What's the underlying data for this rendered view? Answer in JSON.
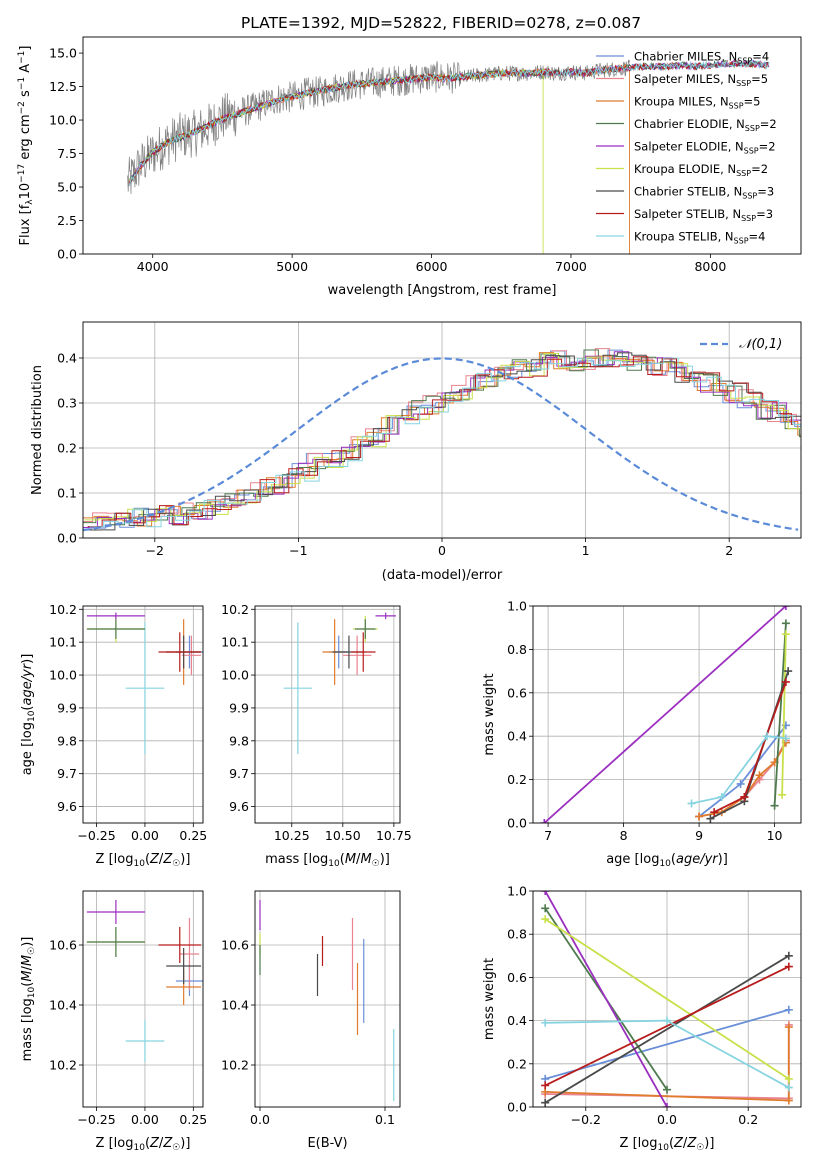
{
  "figure": {
    "title": "PLATE=1392, MJD=52822, FIBERID=0278, z=0.087"
  },
  "series_meta": [
    {
      "name": "Chabrier MILES",
      "nssp": "4",
      "color": "#6a8fd8"
    },
    {
      "name": "Salpeter MILES",
      "nssp": "5",
      "color": "#e8838f"
    },
    {
      "name": "Kroupa MILES",
      "nssp": "5",
      "color": "#e07c2e"
    },
    {
      "name": "Chabrier ELODIE",
      "nssp": "2",
      "color": "#4e7a4e"
    },
    {
      "name": "Salpeter ELODIE",
      "nssp": "2",
      "color": "#9b2fbf"
    },
    {
      "name": "Kroupa ELODIE",
      "nssp": "2",
      "color": "#c9e04a"
    },
    {
      "name": "Chabrier STELIB",
      "nssp": "3",
      "color": "#4a4a4a"
    },
    {
      "name": "Salpeter STELIB",
      "nssp": "3",
      "color": "#b81c1c"
    },
    {
      "name": "Kroupa STELIB",
      "nssp": "4",
      "color": "#86d4e0"
    }
  ],
  "chart_data": [
    {
      "id": "spectrum",
      "type": "line",
      "title": "PLATE=1392, MJD=52822, FIBERID=0278, z=0.087",
      "xlabel": "wavelength [Angstrom, rest frame]",
      "ylabel": "Flux [f_λ 10^-17 erg cm^-2 s^-1 A^-1]",
      "xlim": [
        3500,
        8650
      ],
      "ylim": [
        0,
        16.2
      ],
      "xticks": [
        4000,
        5000,
        6000,
        7000,
        8000
      ],
      "yticks": [
        0.0,
        2.5,
        5.0,
        7.5,
        10.0,
        12.5,
        15.0
      ],
      "data_curve": {
        "name": "data",
        "color": "#808080",
        "x": [
          3800,
          3900,
          4000,
          4100,
          4200,
          4300,
          4400,
          4500,
          4600,
          4700,
          4800,
          4900,
          5000,
          5100,
          5200,
          5300,
          5400,
          5500,
          5600,
          5700,
          5800,
          5900,
          6000,
          6100,
          6200,
          6300,
          6400,
          6500,
          6600,
          6700,
          6800,
          6900,
          7000,
          7100,
          7200,
          7300,
          7400
        ],
        "y": [
          5.0,
          6.5,
          7.5,
          8.3,
          8.8,
          9.0,
          9.5,
          10.2,
          10.5,
          10.8,
          11.2,
          11.6,
          11.7,
          12.0,
          12.1,
          12.4,
          12.6,
          12.7,
          12.8,
          12.9,
          13.0,
          13.1,
          13.2,
          13.2,
          13.1,
          13.3,
          13.4,
          13.5,
          13.5,
          13.5,
          13.6,
          13.5,
          13.6,
          13.5,
          13.7,
          13.8,
          13.9
        ]
      },
      "model_curve": {
        "x": [
          3800,
          3900,
          4000,
          4100,
          4200,
          4300,
          4400,
          4500,
          4600,
          4700,
          4800,
          4900,
          5000,
          5100,
          5200,
          5300,
          5400,
          5500,
          5600,
          5700,
          5800,
          5900,
          6000,
          6100,
          6200,
          6300,
          6400,
          6500,
          6600,
          6700,
          6800,
          6900,
          7000,
          7100,
          7200,
          7300,
          7400,
          7500,
          7600,
          7700,
          7800,
          7900,
          8000,
          8100,
          8200,
          8300,
          8400
        ],
        "y": [
          4.8,
          6.4,
          7.6,
          8.3,
          8.7,
          9.1,
          9.6,
          10.1,
          10.4,
          10.8,
          11.1,
          11.5,
          11.7,
          12.0,
          12.2,
          12.4,
          12.6,
          12.7,
          12.8,
          12.9,
          13.0,
          13.1,
          13.2,
          13.1,
          13.2,
          13.3,
          13.4,
          13.5,
          13.5,
          13.5,
          13.6,
          13.5,
          13.6,
          13.5,
          13.7,
          13.8,
          13.9,
          14.0,
          14.0,
          14.0,
          14.1,
          14.0,
          14.1,
          14.2,
          14.2,
          14.2,
          14.1
        ]
      },
      "legend_position": "right"
    },
    {
      "id": "residual-hist",
      "type": "line",
      "xlabel": "(data-model)/error",
      "ylabel": "Normed distribution",
      "xlim": [
        -2.5,
        2.5
      ],
      "ylim": [
        0,
        0.48
      ],
      "xticks": [
        -2,
        -1,
        0,
        1,
        2
      ],
      "yticks": [
        0.0,
        0.1,
        0.2,
        0.3,
        0.4
      ],
      "gaussian_label": "𝒩(0,1)",
      "gaussian_color": "#5b8bd8",
      "bin_width": 0.1,
      "hist_x_start": -2.5,
      "hist_base": [
        0.034,
        0.035,
        0.036,
        0.043,
        0.045,
        0.05,
        0.05,
        0.058,
        0.062,
        0.073,
        0.085,
        0.095,
        0.108,
        0.118,
        0.134,
        0.144,
        0.167,
        0.178,
        0.194,
        0.207,
        0.225,
        0.252,
        0.265,
        0.283,
        0.298,
        0.31,
        0.322,
        0.345,
        0.358,
        0.369,
        0.378,
        0.382,
        0.392,
        0.398,
        0.393,
        0.396,
        0.401,
        0.396,
        0.393,
        0.38,
        0.382,
        0.368,
        0.36,
        0.345,
        0.334,
        0.322,
        0.31,
        0.286,
        0.279,
        0.262,
        0.241,
        0.224,
        0.205,
        0.189,
        0.174,
        0.163,
        0.145,
        0.134,
        0.118,
        0.108,
        0.094,
        0.085,
        0.075,
        0.067,
        0.058,
        0.053,
        0.047,
        0.045,
        0.04,
        0.036,
        0.035,
        0.031,
        0.029,
        0.028,
        0.026
      ]
    },
    {
      "id": "age-vs-z",
      "type": "scatter",
      "xlabel": "Z [log10(Z/Z☉)]",
      "ylabel": "age [log10(age/yr)]",
      "xlim": [
        -0.32,
        0.3
      ],
      "ylim": [
        9.55,
        10.21
      ],
      "xticks": [
        -0.25,
        0.0,
        0.25
      ],
      "yticks": [
        9.6,
        9.7,
        9.8,
        9.9,
        10.0,
        10.1,
        10.2
      ],
      "points": [
        {
          "series": 8,
          "x": 0.0,
          "y": 9.96,
          "xerr": 0.1,
          "yerr": 0.2
        },
        {
          "series": 5,
          "x": -0.15,
          "y": 10.14,
          "xerr": 0.15,
          "yerr": 0.04
        },
        {
          "series": 3,
          "x": -0.15,
          "y": 10.14,
          "xerr": 0.15,
          "yerr": 0.03
        },
        {
          "series": 4,
          "x": -0.15,
          "y": 10.18,
          "xerr": 0.15,
          "yerr": 0.01
        },
        {
          "series": 0,
          "x": 0.23,
          "y": 10.07,
          "xerr": 0.07,
          "yerr": 0.05
        },
        {
          "series": 1,
          "x": 0.24,
          "y": 10.06,
          "xerr": 0.05,
          "yerr": 0.06
        },
        {
          "series": 2,
          "x": 0.2,
          "y": 10.07,
          "xerr": 0.09,
          "yerr": 0.1
        },
        {
          "series": 6,
          "x": 0.2,
          "y": 10.07,
          "xerr": 0.09,
          "yerr": 0.05
        },
        {
          "series": 7,
          "x": 0.18,
          "y": 10.07,
          "xerr": 0.11,
          "yerr": 0.06
        }
      ]
    },
    {
      "id": "age-vs-mass",
      "type": "scatter",
      "xlabel": "mass [log10(M/M☉)]",
      "ylabel": "",
      "xlim": [
        10.07,
        10.78
      ],
      "ylim": [
        9.55,
        10.21
      ],
      "xticks": [
        10.25,
        10.5,
        10.75
      ],
      "yticks": [
        9.6,
        9.7,
        9.8,
        9.9,
        10.0,
        10.1,
        10.2
      ],
      "points": [
        {
          "series": 8,
          "x": 10.28,
          "y": 9.96,
          "xerr": 0.07,
          "yerr": 0.2
        },
        {
          "series": 5,
          "x": 10.61,
          "y": 10.14,
          "xerr": 0.06,
          "yerr": 0.04
        },
        {
          "series": 3,
          "x": 10.61,
          "y": 10.14,
          "xerr": 0.05,
          "yerr": 0.03
        },
        {
          "series": 4,
          "x": 10.71,
          "y": 10.18,
          "xerr": 0.05,
          "yerr": 0.01
        },
        {
          "series": 0,
          "x": 10.48,
          "y": 10.07,
          "xerr": 0.05,
          "yerr": 0.05
        },
        {
          "series": 1,
          "x": 10.57,
          "y": 10.06,
          "xerr": 0.07,
          "yerr": 0.06
        },
        {
          "series": 2,
          "x": 10.46,
          "y": 10.07,
          "xerr": 0.06,
          "yerr": 0.1
        },
        {
          "series": 6,
          "x": 10.53,
          "y": 10.07,
          "xerr": 0.08,
          "yerr": 0.05
        },
        {
          "series": 7,
          "x": 10.6,
          "y": 10.07,
          "xerr": 0.06,
          "yerr": 0.06
        }
      ]
    },
    {
      "id": "weight-vs-age",
      "type": "line",
      "xlabel": "age [log10(age/yr)]",
      "ylabel": "mass weight",
      "xlim": [
        6.8,
        10.35
      ],
      "ylim": [
        0,
        1.0
      ],
      "xticks": [
        7,
        8,
        9,
        10
      ],
      "yticks": [
        0.0,
        0.2,
        0.4,
        0.6,
        0.8,
        1.0
      ],
      "series": [
        {
          "series": 0,
          "x": [
            9.0,
            9.55,
            10.15
          ],
          "y": [
            0.03,
            0.18,
            0.45
          ]
        },
        {
          "series": 1,
          "x": [
            9.0,
            9.3,
            9.6,
            9.8,
            10.0,
            10.15
          ],
          "y": [
            0.03,
            0.05,
            0.12,
            0.2,
            0.28,
            0.38
          ]
        },
        {
          "series": 2,
          "x": [
            9.0,
            9.3,
            9.6,
            9.8,
            10.0,
            10.15
          ],
          "y": [
            0.03,
            0.05,
            0.12,
            0.22,
            0.28,
            0.37
          ]
        },
        {
          "series": 3,
          "x": [
            10.0,
            10.15
          ],
          "y": [
            0.08,
            0.92
          ]
        },
        {
          "series": 4,
          "x": [
            6.95,
            10.15
          ],
          "y": [
            0.0,
            1.0
          ]
        },
        {
          "series": 5,
          "x": [
            10.1,
            10.15
          ],
          "y": [
            0.13,
            0.87
          ]
        },
        {
          "series": 6,
          "x": [
            9.15,
            9.6,
            10.18
          ],
          "y": [
            0.02,
            0.1,
            0.7
          ]
        },
        {
          "series": 7,
          "x": [
            9.2,
            9.6,
            10.15
          ],
          "y": [
            0.05,
            0.12,
            0.65
          ]
        },
        {
          "series": 8,
          "x": [
            8.9,
            9.3,
            9.9,
            10.15
          ],
          "y": [
            0.09,
            0.12,
            0.4,
            0.39
          ]
        }
      ]
    },
    {
      "id": "mass-vs-z",
      "type": "scatter",
      "xlabel": "Z [log10(Z/Z☉)]",
      "ylabel": "mass [log10(M/M☉)]",
      "xlim": [
        -0.32,
        0.3
      ],
      "ylim": [
        10.06,
        10.78
      ],
      "xticks": [
        -0.25,
        0.0,
        0.25
      ],
      "yticks": [
        10.2,
        10.4,
        10.6
      ],
      "points": [
        {
          "series": 8,
          "x": 0.0,
          "y": 10.28,
          "xerr": 0.1,
          "yerr": 0.07
        },
        {
          "series": 5,
          "x": -0.15,
          "y": 10.61,
          "xerr": 0.15,
          "yerr": 0.05
        },
        {
          "series": 3,
          "x": -0.15,
          "y": 10.61,
          "xerr": 0.15,
          "yerr": 0.05
        },
        {
          "series": 4,
          "x": -0.15,
          "y": 10.71,
          "xerr": 0.15,
          "yerr": 0.04
        },
        {
          "series": 0,
          "x": 0.23,
          "y": 10.48,
          "xerr": 0.07,
          "yerr": 0.05
        },
        {
          "series": 1,
          "x": 0.23,
          "y": 10.57,
          "xerr": 0.05,
          "yerr": 0.12
        },
        {
          "series": 2,
          "x": 0.2,
          "y": 10.46,
          "xerr": 0.09,
          "yerr": 0.06
        },
        {
          "series": 6,
          "x": 0.2,
          "y": 10.53,
          "xerr": 0.09,
          "yerr": 0.06
        },
        {
          "series": 7,
          "x": 0.18,
          "y": 10.6,
          "xerr": 0.11,
          "yerr": 0.06
        }
      ]
    },
    {
      "id": "mass-vs-ebv",
      "type": "scatter",
      "xlabel": "E(B-V)",
      "ylabel": "",
      "xlim": [
        -0.004,
        0.112
      ],
      "ylim": [
        10.06,
        10.78
      ],
      "xticks": [
        0.0,
        0.1
      ],
      "yticks": [
        10.2,
        10.4,
        10.6
      ],
      "points": [
        {
          "series": 8,
          "x": 0.107,
          "y": 10.2,
          "yerr": 0.12
        },
        {
          "series": 5,
          "x": 0.0,
          "y": 10.6,
          "yerr": 0.04
        },
        {
          "series": 3,
          "x": 0.0,
          "y": 10.55,
          "yerr": 0.05
        },
        {
          "series": 4,
          "x": 0.0,
          "y": 10.7,
          "yerr": 0.05
        },
        {
          "series": 0,
          "x": 0.083,
          "y": 10.48,
          "yerr": 0.14
        },
        {
          "series": 1,
          "x": 0.074,
          "y": 10.57,
          "yerr": 0.12
        },
        {
          "series": 2,
          "x": 0.078,
          "y": 10.42,
          "yerr": 0.12
        },
        {
          "series": 6,
          "x": 0.046,
          "y": 10.5,
          "yerr": 0.07
        },
        {
          "series": 7,
          "x": 0.05,
          "y": 10.58,
          "yerr": 0.05
        }
      ]
    },
    {
      "id": "weight-vs-z",
      "type": "line",
      "xlabel": "Z [log10(Z/Z☉)]",
      "ylabel": "mass weight",
      "xlim": [
        -0.33,
        0.33
      ],
      "ylim": [
        0,
        1.0
      ],
      "xticks": [
        -0.2,
        0.0,
        0.2
      ],
      "yticks": [
        0.0,
        0.2,
        0.4,
        0.6,
        0.8,
        1.0
      ],
      "series": [
        {
          "series": 0,
          "x": [
            -0.3,
            0.3
          ],
          "y": [
            0.13,
            0.45
          ]
        },
        {
          "series": 1,
          "x": [
            -0.3,
            0.3,
            0.3
          ],
          "y": [
            0.06,
            0.04,
            0.38
          ]
        },
        {
          "series": 2,
          "x": [
            -0.3,
            0.3,
            0.3
          ],
          "y": [
            0.07,
            0.03,
            0.37
          ]
        },
        {
          "series": 3,
          "x": [
            -0.3,
            0.0
          ],
          "y": [
            0.92,
            0.08
          ]
        },
        {
          "series": 4,
          "x": [
            -0.3,
            0.0
          ],
          "y": [
            1.0,
            0.0
          ]
        },
        {
          "series": 5,
          "x": [
            -0.3,
            0.3
          ],
          "y": [
            0.87,
            0.13
          ]
        },
        {
          "series": 6,
          "x": [
            -0.3,
            0.3
          ],
          "y": [
            0.02,
            0.7
          ]
        },
        {
          "series": 7,
          "x": [
            -0.3,
            0.3
          ],
          "y": [
            0.1,
            0.65
          ]
        },
        {
          "series": 8,
          "x": [
            -0.3,
            0.0,
            0.3
          ],
          "y": [
            0.39,
            0.4,
            0.09
          ]
        }
      ]
    }
  ]
}
